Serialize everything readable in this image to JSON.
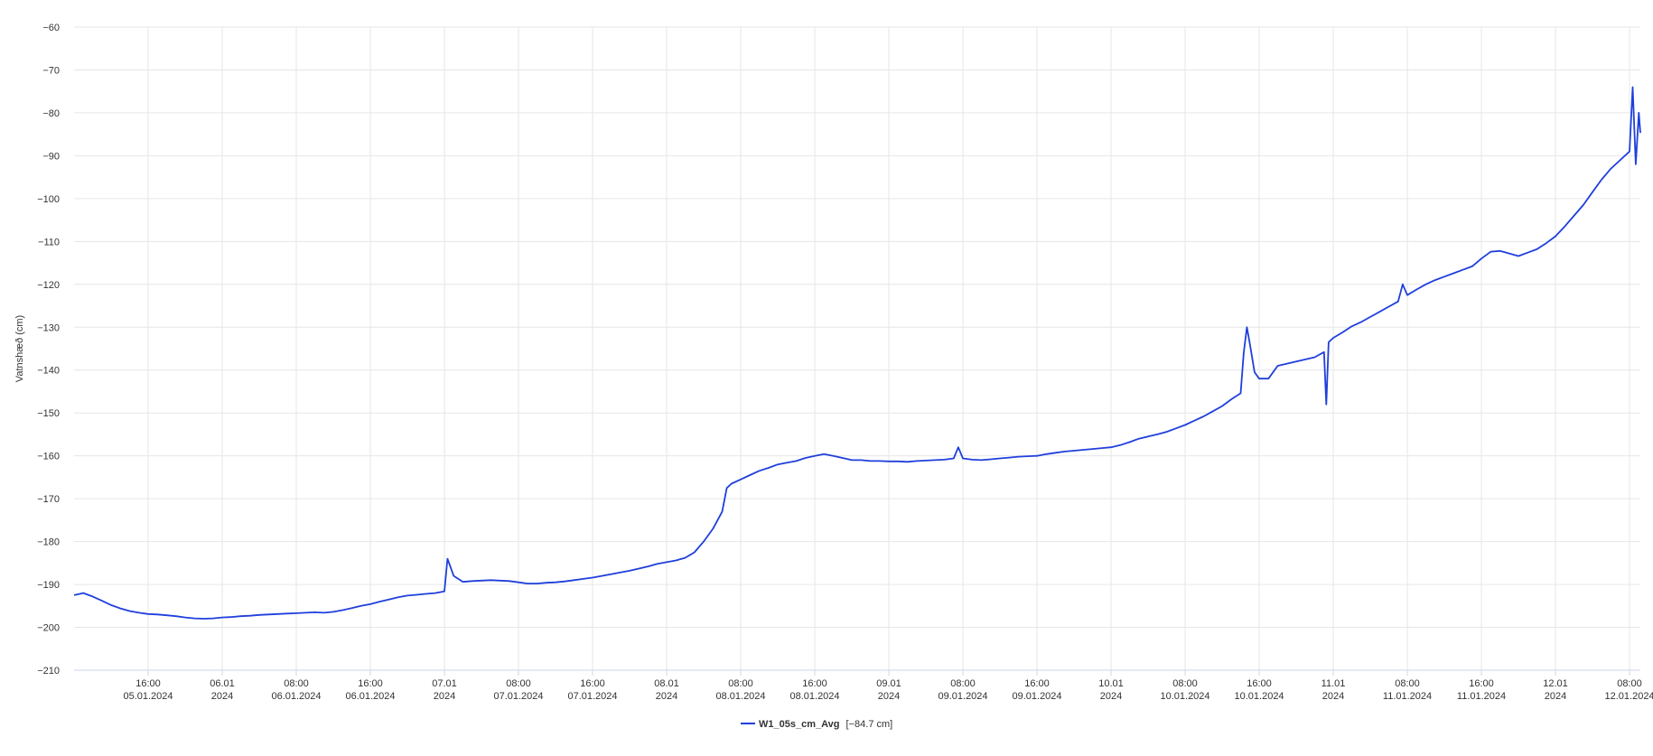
{
  "chart_data": {
    "type": "line",
    "title": "",
    "xlabel": "",
    "ylabel": "Vatnshæð (cm)",
    "ylim": [
      -210,
      -60
    ],
    "yticks": [
      -60,
      -70,
      -80,
      -90,
      -100,
      -110,
      -120,
      -130,
      -140,
      -150,
      -160,
      -170,
      -180,
      -190,
      -200,
      -210
    ],
    "xlim": [
      "2024-01-05T08:00",
      "2024-01-12T09:10"
    ],
    "grid": true,
    "legend_position": "bottom-center",
    "xticks": [
      {
        "t": "2024-01-05T16:00",
        "line1": "16:00",
        "line2": "05.01.2024"
      },
      {
        "t": "2024-01-06T00:00",
        "line1": "06.01",
        "line2": "2024"
      },
      {
        "t": "2024-01-06T08:00",
        "line1": "08:00",
        "line2": "06.01.2024"
      },
      {
        "t": "2024-01-06T16:00",
        "line1": "16:00",
        "line2": "06.01.2024"
      },
      {
        "t": "2024-01-07T00:00",
        "line1": "07.01",
        "line2": "2024"
      },
      {
        "t": "2024-01-07T08:00",
        "line1": "08:00",
        "line2": "07.01.2024"
      },
      {
        "t": "2024-01-07T16:00",
        "line1": "16:00",
        "line2": "07.01.2024"
      },
      {
        "t": "2024-01-08T00:00",
        "line1": "08.01",
        "line2": "2024"
      },
      {
        "t": "2024-01-08T08:00",
        "line1": "08:00",
        "line2": "08.01.2024"
      },
      {
        "t": "2024-01-08T16:00",
        "line1": "16:00",
        "line2": "08.01.2024"
      },
      {
        "t": "2024-01-09T00:00",
        "line1": "09.01",
        "line2": "2024"
      },
      {
        "t": "2024-01-09T08:00",
        "line1": "08:00",
        "line2": "09.01.2024"
      },
      {
        "t": "2024-01-09T16:00",
        "line1": "16:00",
        "line2": "09.01.2024"
      },
      {
        "t": "2024-01-10T00:00",
        "line1": "10.01",
        "line2": "2024"
      },
      {
        "t": "2024-01-10T08:00",
        "line1": "08:00",
        "line2": "10.01.2024"
      },
      {
        "t": "2024-01-10T16:00",
        "line1": "16:00",
        "line2": "10.01.2024"
      },
      {
        "t": "2024-01-11T00:00",
        "line1": "11.01",
        "line2": "2024"
      },
      {
        "t": "2024-01-11T08:00",
        "line1": "08:00",
        "line2": "11.01.2024"
      },
      {
        "t": "2024-01-11T16:00",
        "line1": "16:00",
        "line2": "11.01.2024"
      },
      {
        "t": "2024-01-12T00:00",
        "line1": "12.01",
        "line2": "2024"
      },
      {
        "t": "2024-01-12T08:00",
        "line1": "08:00",
        "line2": "12.01.2024"
      }
    ],
    "series": [
      {
        "name": "W1_05s_cm_Avg",
        "legend_value": "[−84.7 cm]",
        "color": "#1f3fdc",
        "points": [
          [
            "2024-01-05T08:00",
            -192.5
          ],
          [
            "2024-01-05T09:00",
            -192.0
          ],
          [
            "2024-01-05T10:00",
            -192.8
          ],
          [
            "2024-01-05T11:00",
            -193.8
          ],
          [
            "2024-01-05T12:00",
            -194.8
          ],
          [
            "2024-01-05T13:00",
            -195.6
          ],
          [
            "2024-01-05T14:00",
            -196.2
          ],
          [
            "2024-01-05T15:00",
            -196.6
          ],
          [
            "2024-01-05T16:00",
            -196.9
          ],
          [
            "2024-01-05T17:00",
            -197.0
          ],
          [
            "2024-01-05T18:00",
            -197.2
          ],
          [
            "2024-01-05T19:00",
            -197.4
          ],
          [
            "2024-01-05T20:00",
            -197.7
          ],
          [
            "2024-01-05T21:00",
            -197.9
          ],
          [
            "2024-01-05T22:00",
            -198.0
          ],
          [
            "2024-01-05T23:00",
            -197.9
          ],
          [
            "2024-01-06T00:00",
            -197.7
          ],
          [
            "2024-01-06T01:00",
            -197.6
          ],
          [
            "2024-01-06T02:00",
            -197.4
          ],
          [
            "2024-01-06T03:00",
            -197.3
          ],
          [
            "2024-01-06T04:00",
            -197.1
          ],
          [
            "2024-01-06T05:00",
            -197.0
          ],
          [
            "2024-01-06T06:00",
            -196.9
          ],
          [
            "2024-01-06T07:00",
            -196.8
          ],
          [
            "2024-01-06T08:00",
            -196.7
          ],
          [
            "2024-01-06T09:00",
            -196.6
          ],
          [
            "2024-01-06T10:00",
            -196.5
          ],
          [
            "2024-01-06T11:00",
            -196.6
          ],
          [
            "2024-01-06T12:00",
            -196.4
          ],
          [
            "2024-01-06T13:00",
            -196.0
          ],
          [
            "2024-01-06T14:00",
            -195.5
          ],
          [
            "2024-01-06T15:00",
            -195.0
          ],
          [
            "2024-01-06T16:00",
            -194.6
          ],
          [
            "2024-01-06T17:00",
            -194.0
          ],
          [
            "2024-01-06T18:00",
            -193.5
          ],
          [
            "2024-01-06T19:00",
            -193.0
          ],
          [
            "2024-01-06T20:00",
            -192.6
          ],
          [
            "2024-01-06T21:00",
            -192.4
          ],
          [
            "2024-01-06T22:00",
            -192.2
          ],
          [
            "2024-01-06T23:00",
            -192.0
          ],
          [
            "2024-01-07T00:00",
            -191.6
          ],
          [
            "2024-01-07T00:20",
            -184.0
          ],
          [
            "2024-01-07T01:00",
            -188.0
          ],
          [
            "2024-01-07T02:00",
            -189.4
          ],
          [
            "2024-01-07T03:00",
            -189.2
          ],
          [
            "2024-01-07T04:00",
            -189.1
          ],
          [
            "2024-01-07T05:00",
            -189.0
          ],
          [
            "2024-01-07T06:00",
            -189.1
          ],
          [
            "2024-01-07T07:00",
            -189.2
          ],
          [
            "2024-01-07T08:00",
            -189.5
          ],
          [
            "2024-01-07T09:00",
            -189.8
          ],
          [
            "2024-01-07T10:00",
            -189.8
          ],
          [
            "2024-01-07T11:00",
            -189.6
          ],
          [
            "2024-01-07T12:00",
            -189.5
          ],
          [
            "2024-01-07T13:00",
            -189.3
          ],
          [
            "2024-01-07T14:00",
            -189.0
          ],
          [
            "2024-01-07T15:00",
            -188.7
          ],
          [
            "2024-01-07T16:00",
            -188.4
          ],
          [
            "2024-01-07T17:00",
            -188.0
          ],
          [
            "2024-01-07T18:00",
            -187.6
          ],
          [
            "2024-01-07T19:00",
            -187.2
          ],
          [
            "2024-01-07T20:00",
            -186.8
          ],
          [
            "2024-01-07T21:00",
            -186.3
          ],
          [
            "2024-01-07T22:00",
            -185.8
          ],
          [
            "2024-01-07T23:00",
            -185.2
          ],
          [
            "2024-01-08T00:00",
            -184.8
          ],
          [
            "2024-01-08T01:00",
            -184.4
          ],
          [
            "2024-01-08T02:00",
            -183.8
          ],
          [
            "2024-01-08T03:00",
            -182.5
          ],
          [
            "2024-01-08T04:00",
            -180.0
          ],
          [
            "2024-01-08T05:00",
            -177.0
          ],
          [
            "2024-01-08T06:00",
            -173.0
          ],
          [
            "2024-01-08T06:30",
            -167.5
          ],
          [
            "2024-01-08T07:00",
            -166.5
          ],
          [
            "2024-01-08T08:00",
            -165.5
          ],
          [
            "2024-01-08T09:00",
            -164.5
          ],
          [
            "2024-01-08T10:00",
            -163.5
          ],
          [
            "2024-01-08T11:00",
            -162.8
          ],
          [
            "2024-01-08T12:00",
            -162.0
          ],
          [
            "2024-01-08T13:00",
            -161.6
          ],
          [
            "2024-01-08T14:00",
            -161.2
          ],
          [
            "2024-01-08T15:00",
            -160.5
          ],
          [
            "2024-01-08T16:00",
            -160.0
          ],
          [
            "2024-01-08T17:00",
            -159.6
          ],
          [
            "2024-01-08T18:00",
            -160.0
          ],
          [
            "2024-01-08T19:00",
            -160.5
          ],
          [
            "2024-01-08T20:00",
            -161.0
          ],
          [
            "2024-01-08T21:00",
            -161.0
          ],
          [
            "2024-01-08T22:00",
            -161.2
          ],
          [
            "2024-01-08T23:00",
            -161.2
          ],
          [
            "2024-01-09T00:00",
            -161.3
          ],
          [
            "2024-01-09T01:00",
            -161.3
          ],
          [
            "2024-01-09T02:00",
            -161.4
          ],
          [
            "2024-01-09T03:00",
            -161.2
          ],
          [
            "2024-01-09T04:00",
            -161.1
          ],
          [
            "2024-01-09T05:00",
            -161.0
          ],
          [
            "2024-01-09T06:00",
            -160.9
          ],
          [
            "2024-01-09T07:00",
            -160.6
          ],
          [
            "2024-01-09T07:30",
            -158.0
          ],
          [
            "2024-01-09T08:00",
            -160.6
          ],
          [
            "2024-01-09T09:00",
            -160.9
          ],
          [
            "2024-01-09T10:00",
            -161.0
          ],
          [
            "2024-01-09T11:00",
            -160.8
          ],
          [
            "2024-01-09T12:00",
            -160.6
          ],
          [
            "2024-01-09T13:00",
            -160.4
          ],
          [
            "2024-01-09T14:00",
            -160.2
          ],
          [
            "2024-01-09T15:00",
            -160.1
          ],
          [
            "2024-01-09T16:00",
            -160.0
          ],
          [
            "2024-01-09T17:00",
            -159.6
          ],
          [
            "2024-01-09T18:00",
            -159.3
          ],
          [
            "2024-01-09T19:00",
            -159.0
          ],
          [
            "2024-01-09T20:00",
            -158.8
          ],
          [
            "2024-01-09T21:00",
            -158.6
          ],
          [
            "2024-01-09T22:00",
            -158.4
          ],
          [
            "2024-01-09T23:00",
            -158.2
          ],
          [
            "2024-01-10T00:00",
            -158.0
          ],
          [
            "2024-01-10T01:00",
            -157.5
          ],
          [
            "2024-01-10T02:00",
            -156.8
          ],
          [
            "2024-01-10T03:00",
            -156.0
          ],
          [
            "2024-01-10T04:00",
            -155.5
          ],
          [
            "2024-01-10T05:00",
            -155.0
          ],
          [
            "2024-01-10T06:00",
            -154.4
          ],
          [
            "2024-01-10T07:00",
            -153.6
          ],
          [
            "2024-01-10T08:00",
            -152.8
          ],
          [
            "2024-01-10T09:00",
            -151.8
          ],
          [
            "2024-01-10T10:00",
            -150.8
          ],
          [
            "2024-01-10T11:00",
            -149.6
          ],
          [
            "2024-01-10T12:00",
            -148.4
          ],
          [
            "2024-01-10T13:00",
            -146.8
          ],
          [
            "2024-01-10T14:00",
            -145.4
          ],
          [
            "2024-01-10T14:20",
            -136.0
          ],
          [
            "2024-01-10T14:40",
            -130.0
          ],
          [
            "2024-01-10T15:00",
            -134.0
          ],
          [
            "2024-01-10T15:30",
            -140.5
          ],
          [
            "2024-01-10T16:00",
            -142.0
          ],
          [
            "2024-01-10T17:00",
            -142.0
          ],
          [
            "2024-01-10T18:00",
            -139.0
          ],
          [
            "2024-01-10T19:00",
            -138.5
          ],
          [
            "2024-01-10T20:00",
            -138.0
          ],
          [
            "2024-01-10T21:00",
            -137.5
          ],
          [
            "2024-01-10T22:00",
            -137.0
          ],
          [
            "2024-01-10T23:00",
            -135.8
          ],
          [
            "2024-01-10T23:15",
            -148.0
          ],
          [
            "2024-01-10T23:30",
            -133.5
          ],
          [
            "2024-01-11T00:00",
            -132.5
          ],
          [
            "2024-01-11T01:00",
            -131.2
          ],
          [
            "2024-01-11T02:00",
            -129.8
          ],
          [
            "2024-01-11T03:00",
            -128.8
          ],
          [
            "2024-01-11T04:00",
            -127.6
          ],
          [
            "2024-01-11T05:00",
            -126.4
          ],
          [
            "2024-01-11T06:00",
            -125.2
          ],
          [
            "2024-01-11T07:00",
            -124.0
          ],
          [
            "2024-01-11T07:30",
            -120.0
          ],
          [
            "2024-01-11T08:00",
            -122.5
          ],
          [
            "2024-01-11T09:00",
            -121.2
          ],
          [
            "2024-01-11T10:00",
            -120.0
          ],
          [
            "2024-01-11T11:00",
            -119.0
          ],
          [
            "2024-01-11T12:00",
            -118.2
          ],
          [
            "2024-01-11T13:00",
            -117.4
          ],
          [
            "2024-01-11T14:00",
            -116.6
          ],
          [
            "2024-01-11T15:00",
            -115.8
          ],
          [
            "2024-01-11T16:00",
            -114.0
          ],
          [
            "2024-01-11T17:00",
            -112.4
          ],
          [
            "2024-01-11T18:00",
            -112.2
          ],
          [
            "2024-01-11T19:00",
            -112.8
          ],
          [
            "2024-01-11T20:00",
            -113.4
          ],
          [
            "2024-01-11T21:00",
            -112.6
          ],
          [
            "2024-01-11T22:00",
            -111.8
          ],
          [
            "2024-01-11T23:00",
            -110.4
          ],
          [
            "2024-01-12T00:00",
            -108.8
          ],
          [
            "2024-01-12T01:00",
            -106.5
          ],
          [
            "2024-01-12T02:00",
            -104.0
          ],
          [
            "2024-01-12T03:00",
            -101.5
          ],
          [
            "2024-01-12T04:00",
            -98.5
          ],
          [
            "2024-01-12T05:00",
            -95.5
          ],
          [
            "2024-01-12T06:00",
            -93.0
          ],
          [
            "2024-01-12T07:00",
            -91.0
          ],
          [
            "2024-01-12T08:00",
            -89.0
          ],
          [
            "2024-01-12T08:20",
            -74.0
          ],
          [
            "2024-01-12T08:40",
            -92.0
          ],
          [
            "2024-01-12T09:00",
            -80.0
          ],
          [
            "2024-01-12T09:10",
            -84.7
          ]
        ]
      }
    ]
  }
}
